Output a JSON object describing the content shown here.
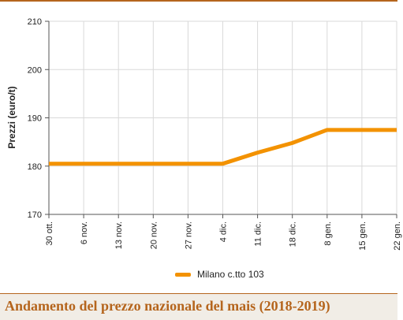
{
  "colors": {
    "series": "#f39200",
    "accent": "#b5651d",
    "grid": "#d9d9d9",
    "axis": "#555555",
    "footer_bg": "#f1ede6"
  },
  "footer": {
    "title": "Andamento del prezzo nazionale del mais (2018-2019)"
  },
  "chart_data": {
    "type": "line",
    "title": "",
    "ylabel": "Prezzi (euro/t)",
    "xlabel": "",
    "ylim": [
      170,
      210
    ],
    "yticks": [
      170,
      180,
      190,
      200,
      210
    ],
    "grid": true,
    "legend_position": "bottom",
    "categories": [
      "30 ott.",
      "6 nov.",
      "13 nov.",
      "20 nov.",
      "27 nov.",
      "4 dic.",
      "11 dic.",
      "18 dic.",
      "8 gen.",
      "15 gen.",
      "22 gen."
    ],
    "series": [
      {
        "name": "Milano  c.tto 103",
        "values": [
          180.5,
          180.5,
          180.5,
          180.5,
          180.5,
          180.5,
          182.8,
          184.8,
          187.5,
          187.5,
          187.5
        ]
      }
    ]
  }
}
